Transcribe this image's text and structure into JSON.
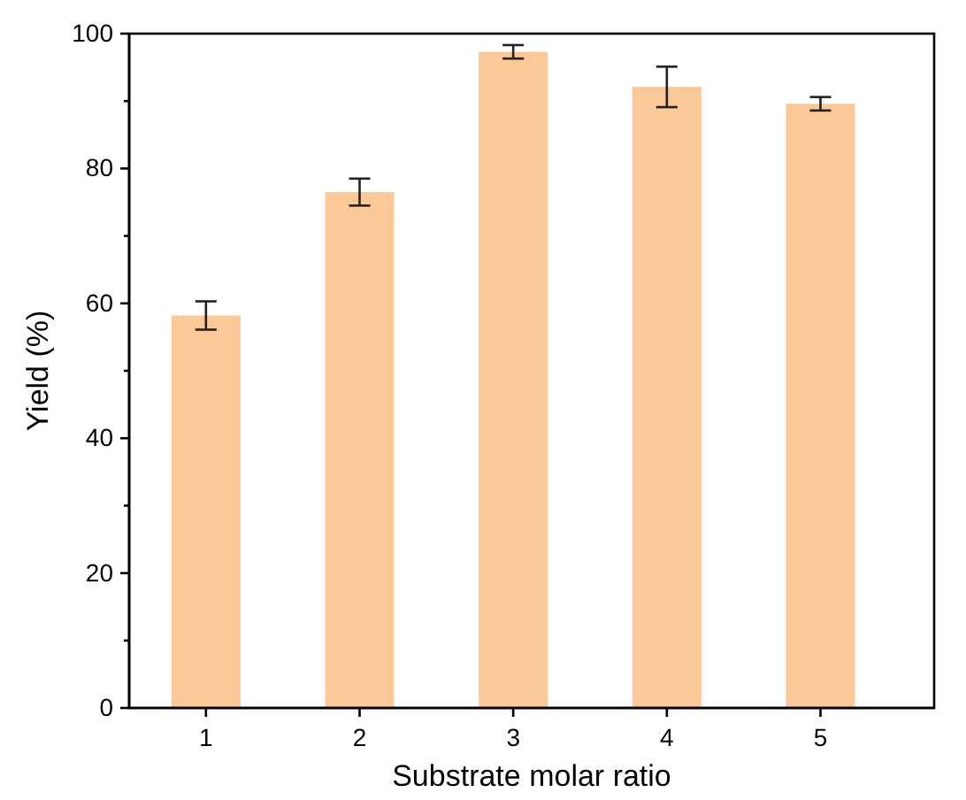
{
  "chart_data": {
    "type": "bar",
    "xlabel": "Substrate molar ratio",
    "ylabel": "Yield (%)",
    "categories": [
      "1",
      "2",
      "3",
      "4",
      "5"
    ],
    "values": [
      58.2,
      76.5,
      97.3,
      92.1,
      89.6
    ],
    "errors": [
      2.1,
      2,
      1,
      3,
      1
    ],
    "color": "#fbc898",
    "ylim": [
      0,
      100
    ],
    "yticks": [
      0,
      {
        "value": 10,
        "label": null
      },
      20,
      {
        "value": 30,
        "label": null
      },
      40,
      {
        "value": 50,
        "label": null
      },
      60,
      {
        "value": 70,
        "label": null
      },
      80,
      {
        "value": 90,
        "label": null
      },
      100
    ],
    "grid": false
  }
}
